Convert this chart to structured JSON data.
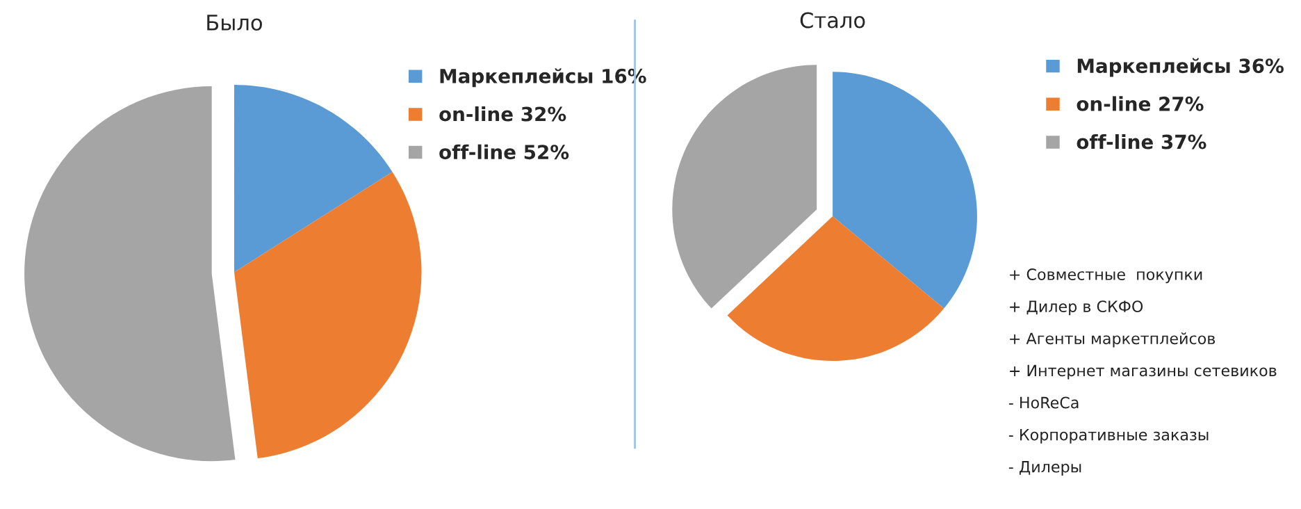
{
  "chart_data": [
    {
      "type": "pie",
      "title": "Было",
      "categories": [
        "Маркеплейсы 16%",
        "on-line 32%",
        "off-line 52%"
      ],
      "values": [
        16,
        32,
        52
      ],
      "colors": [
        "#5b9bd5",
        "#ed7d31",
        "#a5a5a5"
      ],
      "legend": "right"
    },
    {
      "type": "pie",
      "title": "Стало",
      "categories": [
        "Маркеплейсы 36%",
        "on-line 27%",
        "off-line 37%"
      ],
      "values": [
        36,
        27,
        37
      ],
      "colors": [
        "#5b9bd5",
        "#ed7d31",
        "#a5a5a5"
      ],
      "legend": "right",
      "annotations": [
        "+ Совместные  покупки",
        "+ Дилер в СКФО",
        "+ Агенты маркетплейсов",
        "+ Интернет магазины сетевиков",
        "- HoReCa",
        "- Корпоративные заказы",
        "- Дилеры"
      ]
    }
  ]
}
